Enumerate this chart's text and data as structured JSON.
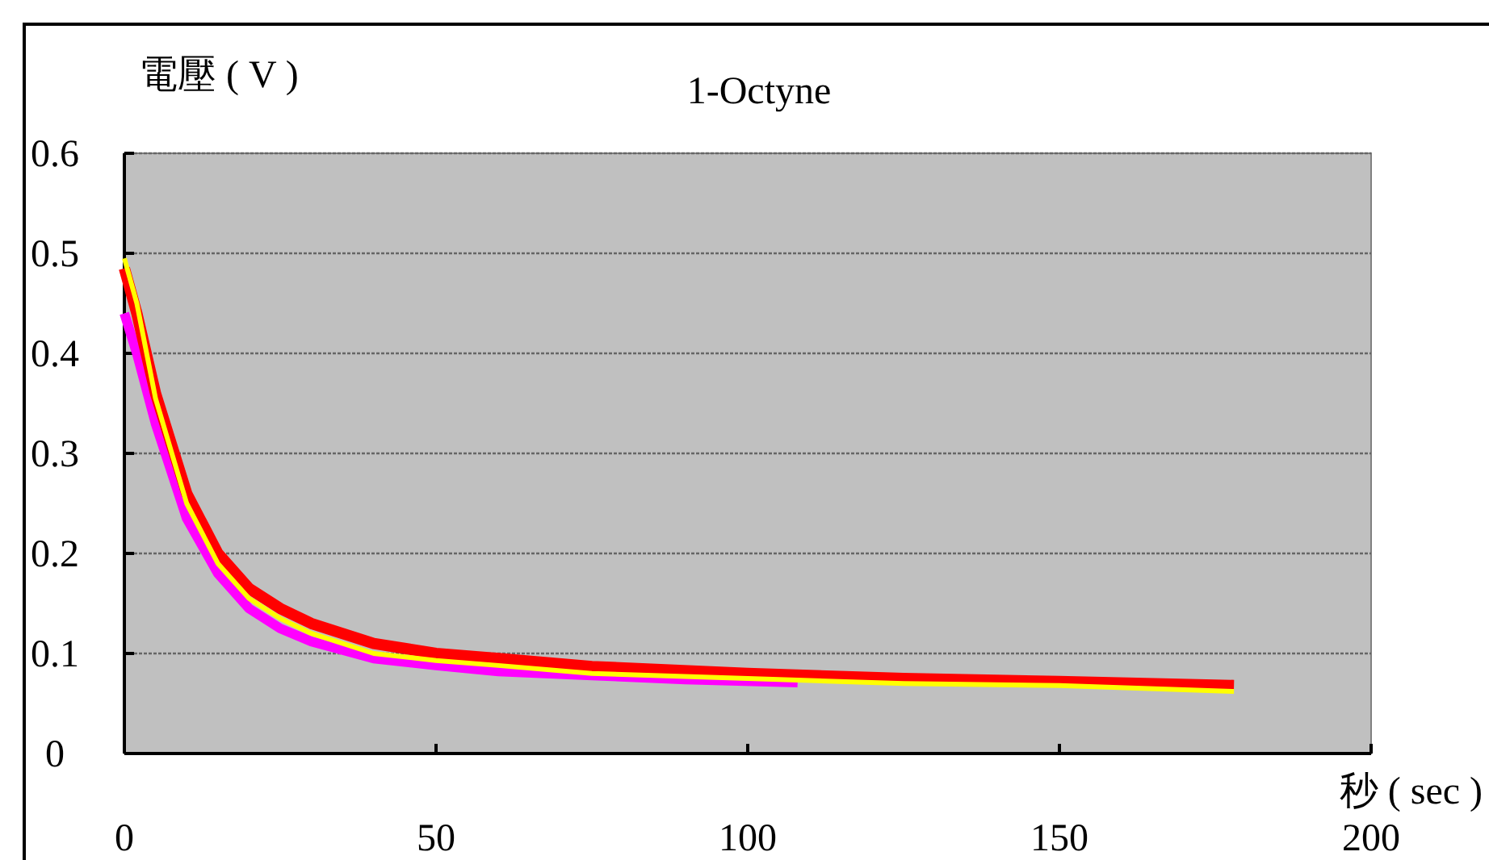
{
  "chart_data": {
    "type": "line",
    "title": "1-Octyne",
    "xlabel": "秒 ( sec )",
    "ylabel": "電壓 ( V )",
    "xlim": [
      0,
      200
    ],
    "xticks": [
      0,
      50,
      100,
      150,
      200
    ],
    "ylim": [
      0,
      0.6
    ],
    "yticks": [
      0,
      0.1,
      0.2,
      0.3,
      0.4,
      0.5,
      0.6
    ],
    "grid": "y",
    "marker": "none",
    "line_style": "solid",
    "series": [
      {
        "color": "#ff00ff",
        "x": [
          0,
          2,
          5,
          10,
          15,
          20,
          25,
          30,
          40,
          50,
          60,
          75,
          90,
          108
        ],
        "values": [
          0.44,
          0.4,
          0.33,
          0.235,
          0.18,
          0.145,
          0.125,
          0.112,
          0.095,
          0.088,
          0.082,
          0.078,
          0.074,
          0.071
        ]
      },
      {
        "color": "#ff0000",
        "x": [
          0,
          2,
          5,
          10,
          15,
          20,
          25,
          30,
          40,
          50,
          60,
          75,
          100,
          125,
          150,
          178
        ],
        "values": [
          0.485,
          0.44,
          0.36,
          0.26,
          0.2,
          0.165,
          0.145,
          0.13,
          0.11,
          0.1,
          0.095,
          0.087,
          0.08,
          0.075,
          0.072,
          0.068
        ]
      },
      {
        "color": "#ffff00",
        "x": [
          0,
          2,
          5,
          10,
          15,
          20,
          25,
          30,
          40,
          50,
          60,
          75,
          100,
          125,
          150,
          178
        ],
        "values": [
          0.495,
          0.45,
          0.355,
          0.25,
          0.19,
          0.155,
          0.135,
          0.12,
          0.1,
          0.093,
          0.088,
          0.08,
          0.075,
          0.07,
          0.068,
          0.062
        ]
      }
    ]
  }
}
